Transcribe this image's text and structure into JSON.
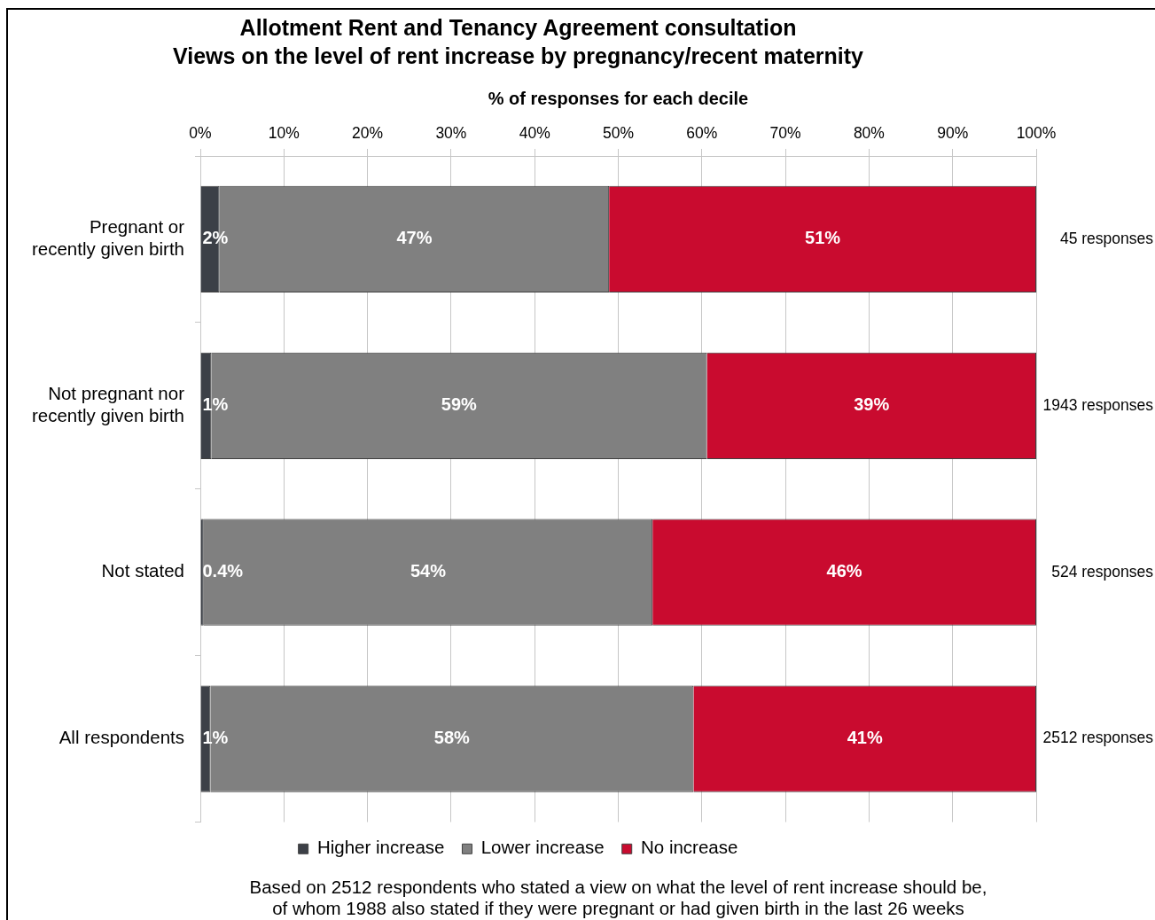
{
  "chart_data": {
    "type": "bar",
    "orientation": "horizontal",
    "stacked": true,
    "title": "Allotment Rent and Tenancy Agreement consultation",
    "subtitle": "Views on the level of rent increase by pregnancy/recent maternity",
    "xlabel": "% of responses for each decile",
    "categories": [
      "Pregnant or recently given birth",
      "Not pregnant nor recently given birth",
      "Not stated",
      "All respondents"
    ],
    "series": [
      {
        "name": "Higher increase",
        "color": "#3c4047",
        "values": [
          2.3,
          1.3,
          0.4,
          1.2
        ],
        "value_labels": [
          "2%",
          "1%",
          "0.4%",
          "1%"
        ]
      },
      {
        "name": "Lower increase",
        "color": "#808080",
        "values": [
          46.6,
          59.3,
          53.7,
          57.8
        ],
        "value_labels": [
          "47%",
          "59%",
          "54%",
          "58%"
        ]
      },
      {
        "name": "No increase",
        "color": "#c90b2f",
        "values": [
          51.1,
          39.4,
          45.9,
          41.0
        ],
        "value_labels": [
          "51%",
          "39%",
          "46%",
          "41%"
        ]
      }
    ],
    "xlim": [
      0,
      100
    ],
    "xticks": [
      {
        "value": 0,
        "label": "0%"
      },
      {
        "value": 10,
        "label": "10%"
      },
      {
        "value": 20,
        "label": "20%"
      },
      {
        "value": 30,
        "label": "30%"
      },
      {
        "value": 40,
        "label": "40%"
      },
      {
        "value": 50,
        "label": "50%"
      },
      {
        "value": 60,
        "label": "60%"
      },
      {
        "value": 70,
        "label": "70%"
      },
      {
        "value": 80,
        "label": "80%"
      },
      {
        "value": 90,
        "label": "90%"
      },
      {
        "value": 100,
        "label": "100%"
      }
    ],
    "grid": "x",
    "legend": "bottom",
    "annotations": [
      "45 responses",
      "1943 responses",
      "524 responses",
      "2512 responses",
      "Based on 2512 respondents who stated a view on what the level of rent increase should be, of whom 1988 also stated if they were pregnant or had given birth in the last 26 weeks"
    ]
  }
}
